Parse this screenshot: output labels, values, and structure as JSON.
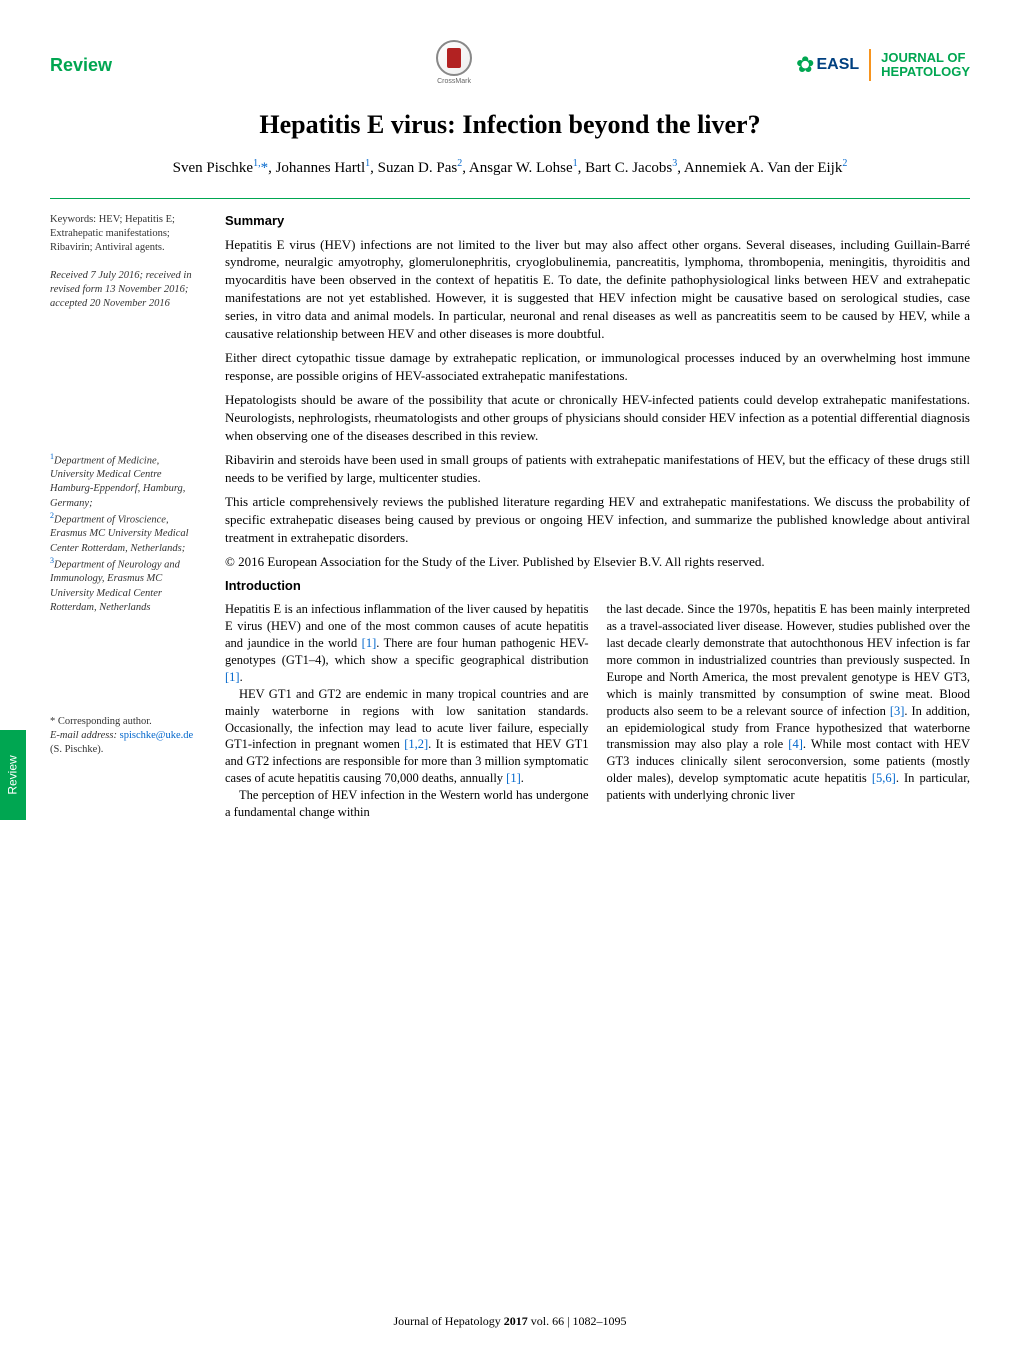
{
  "header": {
    "review_label": "Review",
    "crossmark_label": "CrossMark",
    "easl_text": "EASL",
    "journal_name_line1": "JOURNAL OF",
    "journal_name_line2": "HEPATOLOGY"
  },
  "title": "Hepatitis E virus: Infection beyond the liver?",
  "authors_html": "Sven Pischke<sup>1,</sup><span class='corr'>*</span>, Johannes Hartl<sup>1</sup>, Suzan D. Pas<sup>2</sup>, Ansgar W. Lohse<sup>1</sup>, Bart C. Jacobs<sup>3</sup>, Annemiek A. Van der Eijk<sup>2</sup>",
  "left": {
    "keywords": "Keywords: HEV; Hepatitis E; Extrahepatic manifestations; Ribavirin; Antiviral agents.",
    "dates": "Received 7 July 2016; received in revised form 13 November 2016; accepted 20 November 2016",
    "affiliations_html": "<sup>1</sup>Department of Medicine, University Medical Centre Hamburg-Eppendorf, Hamburg, Germany;<br><sup>2</sup>Department of Viroscience, Erasmus MC University Medical Center Rotterdam, Netherlands;<br><sup>3</sup>Department of Neurology and Immunology, Erasmus MC University Medical Center Rotterdam, Netherlands",
    "corr_symbol": "* Corresponding author.",
    "corr_email_label": "E-mail address:",
    "corr_email": "spischke@uke.de",
    "corr_name": "(S. Pischke)."
  },
  "summary": {
    "heading": "Summary",
    "p1": "Hepatitis E virus (HEV) infections are not limited to the liver but may also affect other organs. Several diseases, including Guillain-Barré syndrome, neuralgic amyotrophy, glomerulonephritis, cryoglobulinemia, pancreatitis, lymphoma, thrombopenia, meningitis, thyroiditis and myocarditis have been observed in the context of hepatitis E. To date, the definite pathophysiological links between HEV and extrahepatic manifestations are not yet established. However, it is suggested that HEV infection might be causative based on serological studies, case series, in vitro data and animal models. In particular, neuronal and renal diseases as well as pancreatitis seem to be caused by HEV, while a causative relationship between HEV and other diseases is more doubtful.",
    "p2": "Either direct cytopathic tissue damage by extrahepatic replication, or immunological processes induced by an overwhelming host immune response, are possible origins of HEV-associated extrahepatic manifestations.",
    "p3": "Hepatologists should be aware of the possibility that acute or chronically HEV-infected patients could develop extrahepatic manifestations. Neurologists, nephrologists, rheumatologists and other groups of physicians should consider HEV infection as a potential differential diagnosis when observing one of the diseases described in this review.",
    "p4": "Ribavirin and steroids have been used in small groups of patients with extrahepatic manifestations of HEV, but the efficacy of these drugs still needs to be verified by large, multicenter studies.",
    "p5": "This article comprehensively reviews the published literature regarding HEV and extrahepatic manifestations. We discuss the probability of specific extrahepatic diseases being caused by previous or ongoing HEV infection, and summarize the published knowledge about antiviral treatment in extrahepatic disorders.",
    "copyright": "© 2016 European Association for the Study of the Liver. Published by Elsevier B.V. All rights reserved."
  },
  "intro": {
    "heading": "Introduction",
    "col1_p1_html": "Hepatitis E is an infectious inflammation of the liver caused by hepatitis E virus (HEV) and one of the most common causes of acute hepatitis and jaundice in the world <span class='ref'>[1]</span>. There are four human pathogenic HEV-genotypes (GT1–4), which show a specific geographical distribution <span class='ref'>[1]</span>.",
    "col1_p2_html": "HEV GT1 and GT2 are endemic in many tropical countries and are mainly waterborne in regions with low sanitation standards. Occasionally, the infection may lead to acute liver failure, especially GT1-infection in pregnant women <span class='ref'>[1,2]</span>. It is estimated that HEV GT1 and GT2 infections are responsible for more than 3 million symptomatic cases of acute hepatitis causing 70,000 deaths, annually <span class='ref'>[1]</span>.",
    "col1_p3_html": "The perception of HEV infection in the Western world has undergone a fundamental change within",
    "col2_p1_html": "the last decade. Since the 1970s, hepatitis E has been mainly interpreted as a travel-associated liver disease. However, studies published over the last decade clearly demonstrate that autochthonous HEV infection is far more common in industrialized countries than previously suspected. In Europe and North America, the most prevalent genotype is HEV GT3, which is mainly transmitted by consumption of swine meat. Blood products also seem to be a relevant source of infection <span class='ref'>[3]</span>. In addition, an epidemiological study from France hypothesized that waterborne transmission may also play a role <span class='ref'>[4]</span>. While most contact with HEV GT3 induces clinically silent seroconversion, some patients (mostly older males), develop symptomatic acute hepatitis <span class='ref'>[5,6]</span>. In particular, patients with underlying chronic liver"
  },
  "side_tab": "Review",
  "footer": {
    "journal": "Journal of Hepatology",
    "year": "2017",
    "vol": "vol. 66",
    "pages": "1082–1095"
  },
  "colors": {
    "green": "#00a651",
    "orange": "#f7941e",
    "link_blue": "#0066cc",
    "navy": "#004080"
  }
}
